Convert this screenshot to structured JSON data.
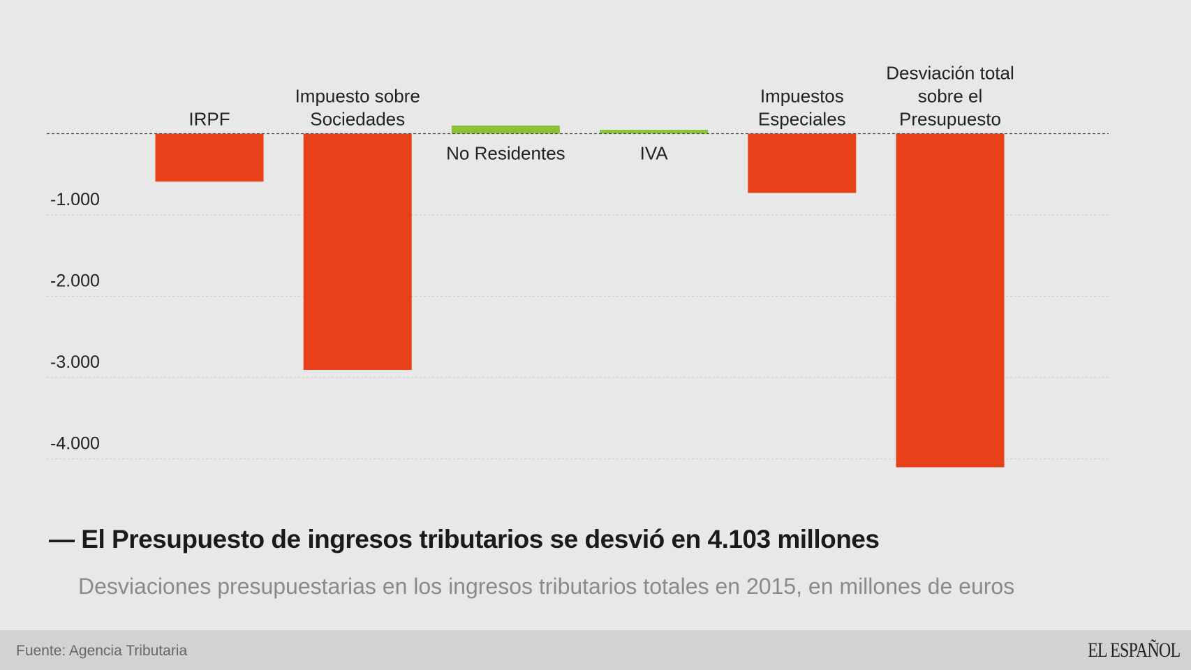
{
  "chart_data": {
    "type": "bar",
    "title": "El Presupuesto de ingresos tributarios se desvió en 4.103 millones",
    "subtitle": "Desviaciones presupuestarias en los ingresos tributarios totales en 2015, en millones de euros",
    "categories": [
      "IRPF",
      "Impuesto sobre Sociedades",
      "No Residentes",
      "IVA",
      "Impuestos Especiales",
      "Desviación total sobre el Presupuesto"
    ],
    "category_lines": [
      [
        "IRPF"
      ],
      [
        "Impuesto sobre",
        "Sociedades"
      ],
      [
        "No Residentes"
      ],
      [
        "IVA"
      ],
      [
        "Impuestos",
        "Especiales"
      ],
      [
        "Desviación total",
        "sobre el",
        "Presupuesto"
      ]
    ],
    "values": [
      -590,
      -2906,
      100,
      47,
      -729,
      -4103
    ],
    "ylim": [
      -4200,
      150
    ],
    "yticks": [
      -1000,
      -2000,
      -3000,
      -4000
    ],
    "ytick_labels": [
      "-1.000",
      "-2.000",
      "-3.000",
      "-4.000"
    ],
    "grid": true,
    "colors": {
      "negative": "#e8411a",
      "positive": "#8cbf3a",
      "grid": "#cfcfcf",
      "zero_line": "#444444"
    }
  },
  "footer": {
    "source": "Fuente: Agencia Tributaria",
    "logo": "EL ESPAÑOL"
  }
}
